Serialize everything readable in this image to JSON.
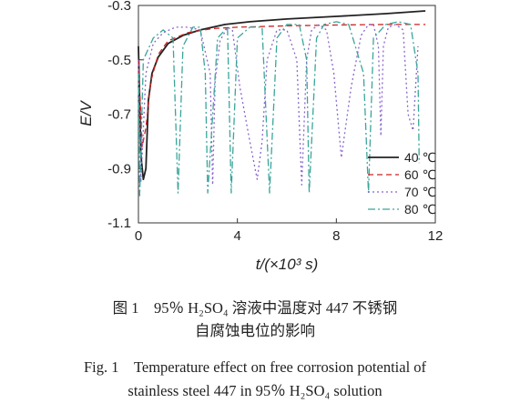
{
  "chart_data": {
    "type": "line",
    "xlabel": "t/(×10³ s)",
    "ylabel": "E/V",
    "xlim": [
      0,
      12
    ],
    "ylim": [
      -1.1,
      -0.3
    ],
    "xticks": [
      "0",
      "4",
      "8",
      "12"
    ],
    "yticks": [
      "-0.3",
      "-0.5",
      "-0.7",
      "-0.9",
      "-1.1"
    ],
    "legend_position": "lower-right",
    "series": [
      {
        "name": "40 ℃",
        "color": "#222222",
        "style": "solid",
        "x": [
          0,
          0.1,
          0.2,
          0.3,
          0.4,
          0.55,
          0.8,
          1.2,
          1.8,
          2.5,
          3.5,
          4.5,
          6,
          8,
          10,
          11.6
        ],
        "y": [
          -0.45,
          -0.85,
          -0.94,
          -0.9,
          -0.65,
          -0.55,
          -0.49,
          -0.44,
          -0.41,
          -0.39,
          -0.37,
          -0.36,
          -0.35,
          -0.34,
          -0.33,
          -0.32
        ]
      },
      {
        "name": "60 ℃",
        "color": "#cc2222",
        "style": "dashed",
        "x": [
          0,
          0.15,
          0.3,
          0.5,
          0.8,
          1.2,
          2,
          3,
          4,
          6,
          8,
          10,
          11.6
        ],
        "y": [
          -0.5,
          -0.82,
          -0.75,
          -0.58,
          -0.48,
          -0.43,
          -0.4,
          -0.385,
          -0.38,
          -0.375,
          -0.372,
          -0.37,
          -0.37
        ]
      },
      {
        "name": "70 ℃",
        "color": "#8866cc",
        "style": "dotted",
        "x": [
          0,
          0.1,
          0.3,
          0.6,
          1,
          1.5,
          2,
          2.5,
          2.9,
          3,
          3.1,
          3.3,
          3.6,
          3.8,
          4.1,
          4.5,
          4.8,
          5,
          5.2,
          5.6,
          6,
          6.4,
          6.6,
          6.8,
          7,
          7.3,
          7.6,
          7.9,
          8.2,
          8.6,
          9,
          9.3,
          9.5,
          9.7,
          9.8,
          9.9,
          10.1,
          10.4,
          10.7,
          10.9,
          11.1,
          11.3
        ],
        "y": [
          -0.5,
          -0.95,
          -0.55,
          -0.44,
          -0.4,
          -0.38,
          -0.38,
          -0.39,
          -0.55,
          -0.96,
          -0.58,
          -0.43,
          -0.38,
          -0.39,
          -0.6,
          -0.8,
          -0.94,
          -0.8,
          -0.5,
          -0.39,
          -0.39,
          -0.5,
          -0.96,
          -0.5,
          -0.39,
          -0.37,
          -0.39,
          -0.55,
          -0.86,
          -0.6,
          -0.41,
          -0.37,
          -0.37,
          -0.45,
          -0.78,
          -0.45,
          -0.38,
          -0.37,
          -0.39,
          -0.7,
          -0.76,
          -0.45
        ]
      },
      {
        "name": "80 ℃",
        "color": "#3aa59a",
        "style": "dash-dot",
        "x": [
          0,
          0.05,
          0.2,
          0.6,
          1,
          1.4,
          1.6,
          1.8,
          2.2,
          2.5,
          2.7,
          2.8,
          3.2,
          3.6,
          3.75,
          4,
          4.5,
          5,
          5.3,
          5.6,
          6,
          6.5,
          6.8,
          6.9,
          7.2,
          7.5,
          8,
          8.5,
          9.1,
          9.3,
          9.5,
          10,
          10.5,
          11,
          11.3,
          11.35
        ],
        "y": [
          -0.55,
          -1.0,
          -0.5,
          -0.42,
          -0.39,
          -0.42,
          -0.99,
          -0.45,
          -0.38,
          -0.38,
          -0.55,
          -0.99,
          -0.42,
          -0.38,
          -0.99,
          -0.42,
          -0.38,
          -0.38,
          -0.99,
          -0.42,
          -0.37,
          -0.37,
          -0.5,
          -0.99,
          -0.42,
          -0.37,
          -0.36,
          -0.37,
          -0.55,
          -0.99,
          -0.42,
          -0.37,
          -0.36,
          -0.37,
          -0.55,
          -0.88
        ]
      }
    ]
  },
  "caption": {
    "zh_line1": "图 1　95％ H₂SO₄ 溶液中温度对 447 不锈钢",
    "zh_line2": "自腐蚀电位的影响",
    "en_line1": "Fig. 1　Temperature effect on free corrosion potential of",
    "en_line2": "stainless steel 447 in 95％ H₂SO₄ solution"
  }
}
